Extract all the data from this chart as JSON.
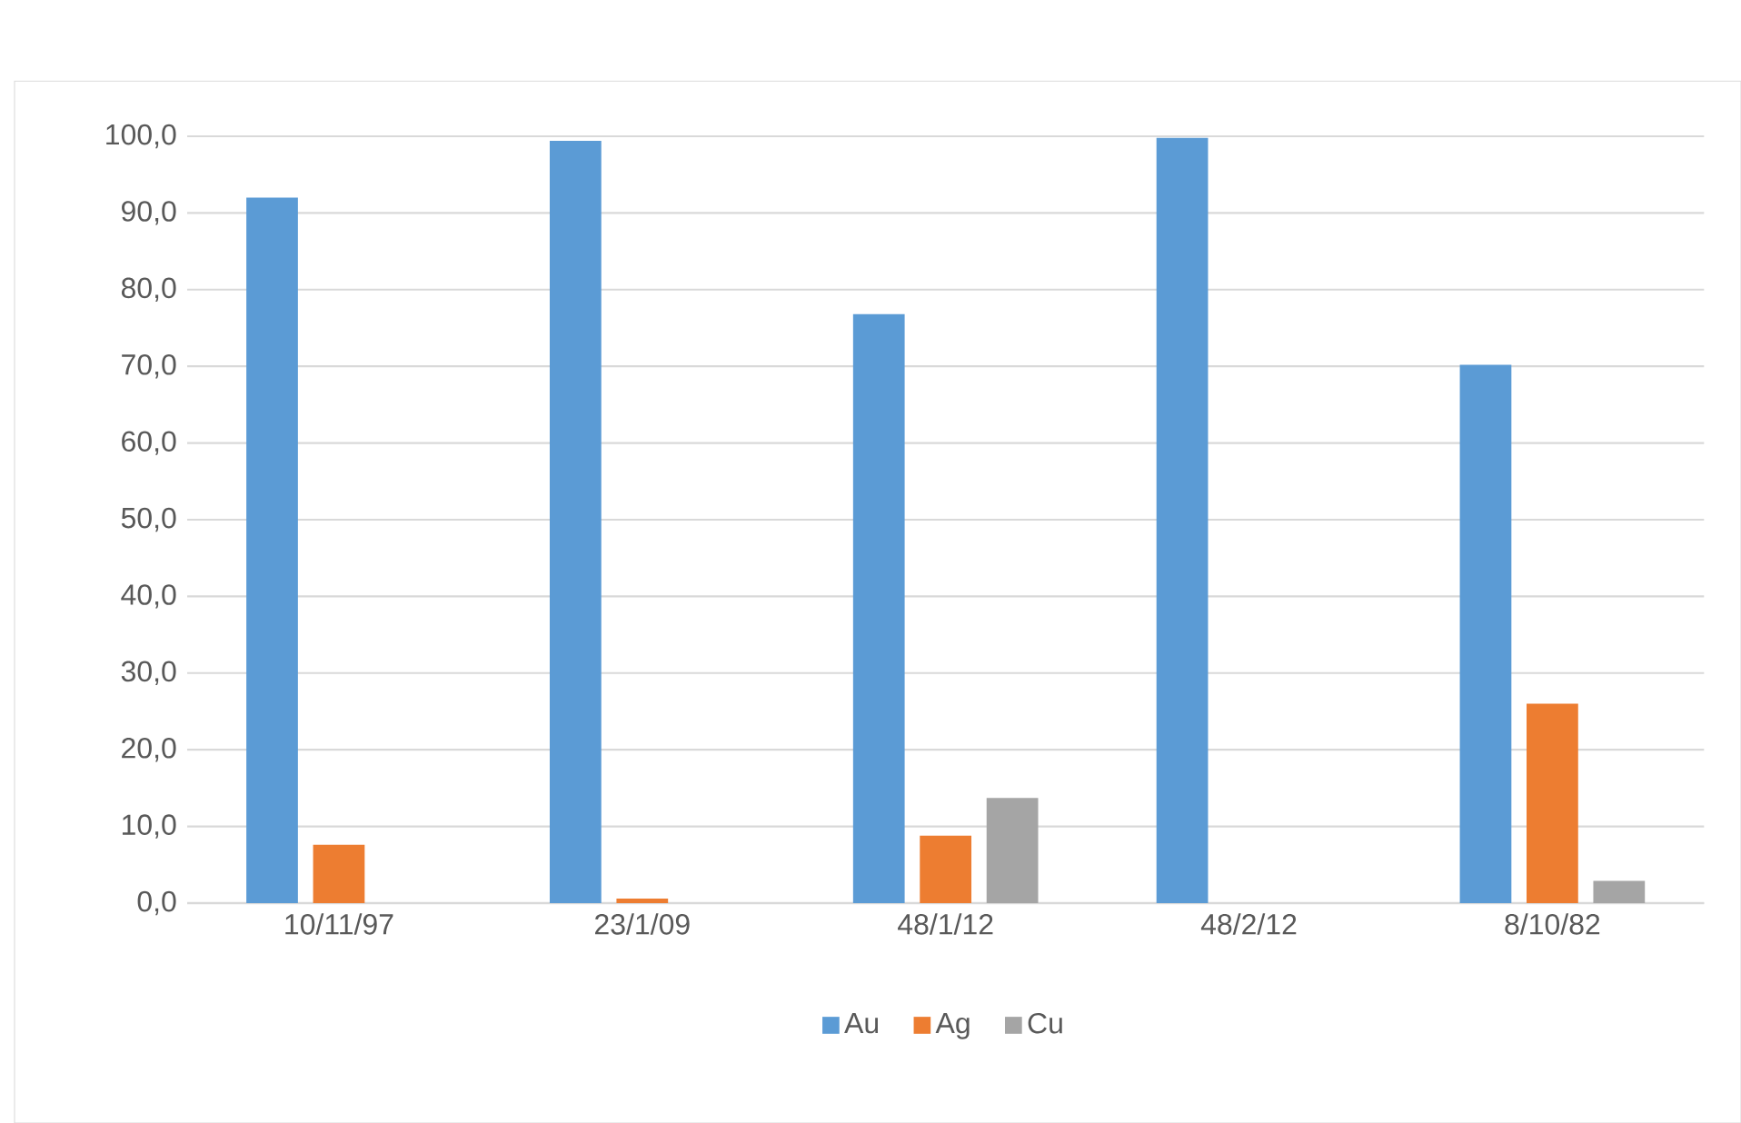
{
  "chart_data": {
    "type": "bar",
    "categories": [
      "10/11/97",
      "23/1/09",
      "48/1/12",
      "48/2/12",
      "8/10/82"
    ],
    "series": [
      {
        "name": "Au",
        "color": "#5b9bd5",
        "values": [
          92.0,
          99.4,
          76.8,
          99.8,
          70.2
        ]
      },
      {
        "name": "Ag",
        "color": "#ed7d31",
        "values": [
          7.6,
          0.6,
          8.8,
          0,
          26.0
        ]
      },
      {
        "name": "Cu",
        "color": "#a5a5a5",
        "values": [
          0,
          0,
          13.7,
          0,
          2.9
        ]
      }
    ],
    "ylim": [
      0,
      100
    ],
    "yticks": [
      {
        "value": 0,
        "label": "0,0"
      },
      {
        "value": 10,
        "label": "10,0"
      },
      {
        "value": 20,
        "label": "20,0"
      },
      {
        "value": 30,
        "label": "30,0"
      },
      {
        "value": 40,
        "label": "40,0"
      },
      {
        "value": 50,
        "label": "50,0"
      },
      {
        "value": 60,
        "label": "60,0"
      },
      {
        "value": 70,
        "label": "70,0"
      },
      {
        "value": 80,
        "label": "80,0"
      },
      {
        "value": 90,
        "label": "90,0"
      },
      {
        "value": 100,
        "label": "100,0"
      }
    ],
    "grid": "y",
    "legend": "bottom"
  }
}
